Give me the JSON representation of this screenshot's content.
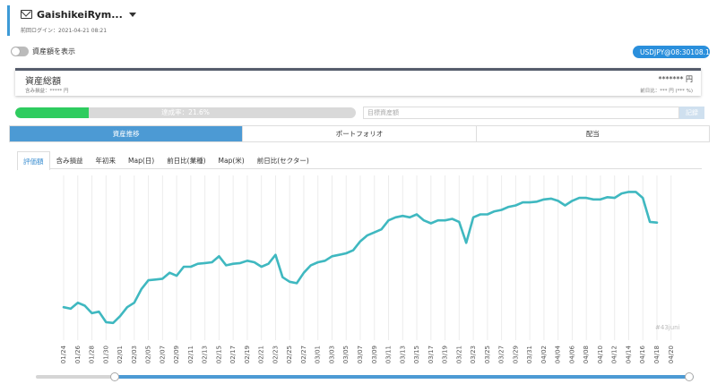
{
  "account": {
    "name": "GaishikeiRym...",
    "last_login": "前回ログイン：2021-04-21 08:21"
  },
  "toggle": {
    "label": "資産額を表示",
    "on": false
  },
  "fx": {
    "pair_time": "USDJPY@08:30",
    "rate": "108.1"
  },
  "asset": {
    "title": "資産総額",
    "unrealized": "含み損益：***** 円",
    "total": "******* 円",
    "prev_day": "前日比：*** 円 (*** %)"
  },
  "progress": {
    "value_percent": 21.6,
    "label": "達成率：21.6%"
  },
  "goal": {
    "placeholder": "目標資産額",
    "button": "記録"
  },
  "main_tabs": [
    {
      "label": "資産推移",
      "active": true
    },
    {
      "label": "ポートフォリオ",
      "active": false
    },
    {
      "label": "配当",
      "active": false
    }
  ],
  "sub_tabs": [
    {
      "label": "評価額",
      "active": true
    },
    {
      "label": "含み損益",
      "active": false
    },
    {
      "label": "年初来",
      "active": false
    },
    {
      "label": "Map(日)",
      "active": false
    },
    {
      "label": "前日比(業種)",
      "active": false
    },
    {
      "label": "Map(米)",
      "active": false
    },
    {
      "label": "前日比(セクター)",
      "active": false
    }
  ],
  "watermark": "#43juni",
  "colors": {
    "accent": "#4c9ad4",
    "line": "#3fb8c0",
    "progress": "#2ecc5f"
  },
  "slider": {
    "start_fraction": 0.12,
    "end_fraction": 1.0
  },
  "chart_data": {
    "type": "line",
    "series": [
      {
        "name": "",
        "values": [
          12,
          11,
          15,
          13,
          8,
          9,
          2,
          1.5,
          6,
          12,
          15,
          24,
          30,
          30.5,
          31,
          35,
          33,
          39,
          39,
          41,
          41.5,
          42,
          46,
          40,
          41,
          41.5,
          43,
          42,
          39,
          41,
          47,
          32,
          29,
          28,
          35,
          40,
          42,
          43,
          46,
          47,
          48,
          50,
          56,
          60,
          62,
          64,
          70,
          72,
          73,
          72,
          74,
          70,
          68,
          70,
          70,
          71,
          69,
          55,
          72,
          74,
          74,
          76,
          77,
          79,
          80,
          82,
          82,
          82.5,
          84,
          84.5,
          83,
          80,
          83,
          85,
          85,
          84,
          84,
          85.5,
          85,
          88,
          89,
          89,
          85,
          69,
          68.5
        ]
      }
    ],
    "x_tick_labels": [
      "01/24",
      "01/26",
      "01/28",
      "01/30",
      "02/01",
      "02/03",
      "02/05",
      "02/07",
      "02/09",
      "02/11",
      "02/13",
      "02/15",
      "02/17",
      "02/19",
      "02/21",
      "02/23",
      "02/25",
      "02/27",
      "03/01",
      "03/03",
      "03/05",
      "03/07",
      "03/09",
      "03/11",
      "03/13",
      "03/15",
      "03/17",
      "03/19",
      "03/21",
      "03/23",
      "03/25",
      "03/27",
      "03/29",
      "03/31",
      "04/02",
      "04/04",
      "04/06",
      "04/08",
      "04/10",
      "04/12",
      "04/14",
      "04/16",
      "04/18",
      "04/20"
    ],
    "grid": true,
    "legend": "none",
    "y_axis_visible": false,
    "ylim": [
      -10,
      100
    ]
  }
}
